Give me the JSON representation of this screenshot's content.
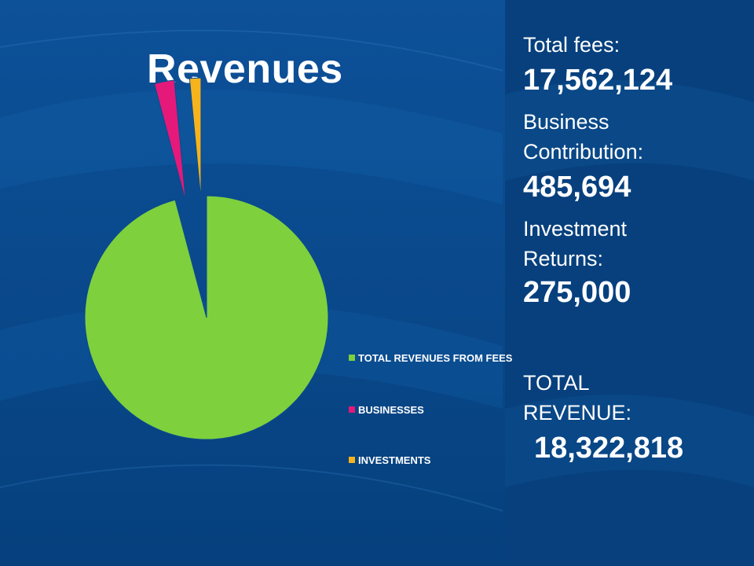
{
  "slide": {
    "title": "Revenues",
    "colors": {
      "background": "#0a4a8f",
      "text": "#ffffff"
    }
  },
  "chart_data": {
    "type": "pie",
    "title": "",
    "categories": [
      "TOTAL REVENUES FROM FEES",
      "BUSINESSES",
      "INVESTMENTS"
    ],
    "values": [
      17562124,
      485694,
      275000
    ],
    "colors": [
      "#7ed03d",
      "#e5197a",
      "#f7b31c"
    ],
    "exploded": [
      false,
      true,
      true
    ],
    "legend_position": "right"
  },
  "summary": {
    "fees_label": "Total fees:",
    "fees_value": "17,562,124",
    "business_label_1": "Business",
    "business_label_2": "Contribution:",
    "business_value": "485,694",
    "investment_label_1": "Investment",
    "investment_label_2": "Returns:",
    "investment_value": "275,000",
    "total_label_1": "TOTAL",
    "total_label_2": "REVENUE:",
    "total_value": "18,322,818"
  }
}
